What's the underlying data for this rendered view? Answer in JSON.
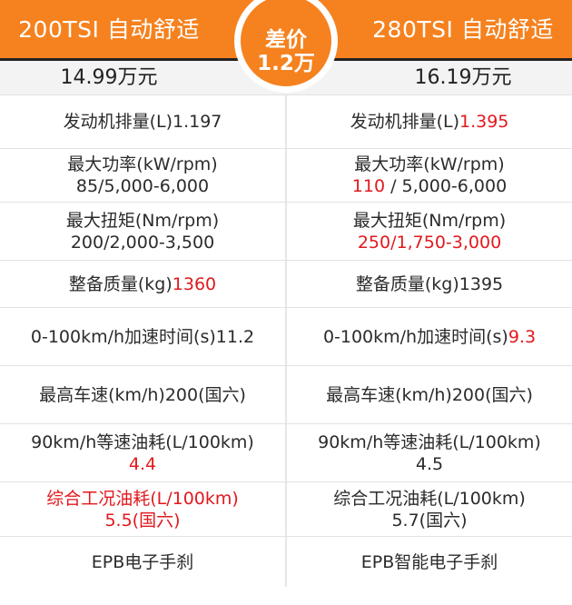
{
  "header": {
    "left_title": "200TSI 自动舒适",
    "right_title": "280TSI 自动舒适",
    "left_price": "14.99万元",
    "right_price": "16.19万元",
    "badge_line1": "差价",
    "badge_line2": "1.2万"
  },
  "colors": {
    "accent": "#f5821f",
    "highlight_red": "#e1191e",
    "dark_bar": "#222222"
  },
  "rows": [
    {
      "left_l1": "发动机排量(L)1.197",
      "left_l2": "",
      "right_l1_a": "发动机排量(L)",
      "right_l1_b": "1.395",
      "right_l2_a": "",
      "right_l2_b": ""
    },
    {
      "left_l1": "最大功率(kW/rpm)",
      "left_l2": "85/5,000-6,000",
      "right_l1_a": "最大功率(kW/rpm)",
      "right_l1_b": "",
      "right_l2_a": "110",
      "right_l2_b": " / 5,000-6,000"
    },
    {
      "left_l1": "最大扭矩(Nm/rpm)",
      "left_l2": "200/2,000-3,500",
      "right_l1_a": "最大扭矩(Nm/rpm)",
      "right_l1_b": "",
      "right_l2_a": "250/1,750-3,000",
      "right_l2_b": ""
    },
    {
      "left_l1_a": "整备质量(kg)",
      "left_l1_b": "1360",
      "right_l1": "整备质量(kg)1395"
    },
    {
      "left_l1": "0-100km/h加速时间(s)11.2",
      "right_l1_a": "0-100km/h加速时间(s)",
      "right_l1_b": "9.3"
    },
    {
      "left_l1": "最高车速(km/h)200(国六)",
      "right_l1": "最高车速(km/h)200(国六)"
    },
    {
      "left_l1": "90km/h等速油耗(L/100km)",
      "left_l2": "4.4",
      "right_l1": "90km/h等速油耗(L/100km)",
      "right_l2": "4.5"
    },
    {
      "left_l1": "综合工况油耗(L/100km)",
      "left_l2": "5.5(国六)",
      "right_l1": "综合工况油耗(L/100km)",
      "right_l2": "5.7(国六)"
    },
    {
      "left_l1": "EPB电子手刹",
      "right_l1": "EPB智能电子手刹"
    }
  ]
}
